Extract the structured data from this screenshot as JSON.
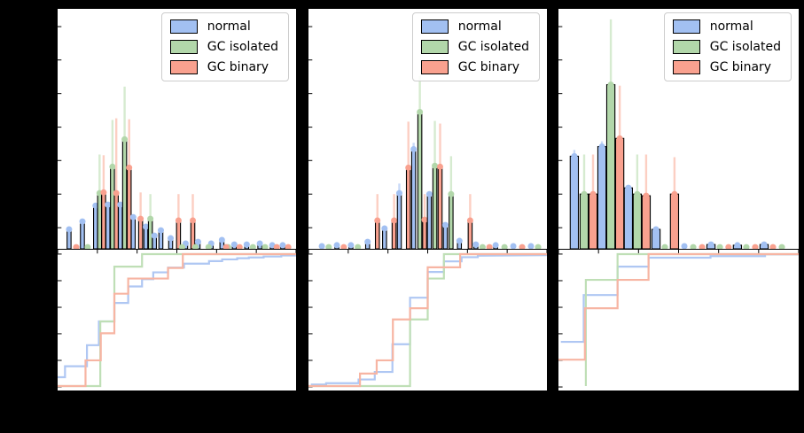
{
  "style": {
    "figure_bg": "#000000",
    "axes_bg": "#ffffff",
    "spine_color": "#000000",
    "legend_border": "#cccccc",
    "series": {
      "normal": {
        "fill": "#a2c0f2",
        "err": "#c9daf8",
        "line": "#afc7f3"
      },
      "isolated": {
        "fill": "#b2d7aa",
        "err": "#d6ebd0",
        "line": "#bfdfb6"
      },
      "binary": {
        "fill": "#f9a18f",
        "err": "#fccfc3",
        "line": "#f7b5a3"
      }
    }
  },
  "legend": {
    "items": [
      {
        "key": "normal",
        "label": "normal"
      },
      {
        "key": "isolated",
        "label": "GC isolated"
      },
      {
        "key": "binary",
        "label": "GC binary"
      }
    ]
  },
  "layout_hints": {
    "panels": 3,
    "rows_per_panel": [
      "histogram with error bars",
      "cumulative step plot"
    ],
    "legend_position": "upper-right of each histogram",
    "note": "axis tick labels / titles are not visible against the black figure background"
  },
  "chart_data": [
    {
      "panel": 1,
      "histogram": {
        "type": "bar",
        "bar_width_frac": 0.0165,
        "columns": [
          "series(n=normal,i=GC isolated,b=GC binary)",
          "x_frac",
          "height_frac",
          "errbar_top_frac"
        ],
        "bars": [
          [
            "n",
            0.048,
            0.081
          ],
          [
            "b",
            0.078,
            0.007
          ],
          [
            "n",
            0.104,
            0.114
          ],
          [
            "i",
            0.126,
            0.007
          ],
          [
            "n",
            0.159,
            0.18
          ],
          [
            "i",
            0.176,
            0.232,
            0.393
          ],
          [
            "b",
            0.193,
            0.235,
            0.39
          ],
          [
            "n",
            0.211,
            0.184
          ],
          [
            "i",
            0.23,
            0.342,
            0.537
          ],
          [
            "b",
            0.246,
            0.232,
            0.544
          ],
          [
            "n",
            0.263,
            0.184
          ],
          [
            "i",
            0.281,
            0.456,
            0.676
          ],
          [
            "b",
            0.3,
            0.338,
            0.54
          ],
          [
            "n",
            0.317,
            0.132
          ],
          [
            "b",
            0.348,
            0.125,
            0.235
          ],
          [
            "n",
            0.37,
            0.092
          ],
          [
            "i",
            0.389,
            0.125,
            0.228
          ],
          [
            "n",
            0.406,
            0.055
          ],
          [
            "n",
            0.433,
            0.077
          ],
          [
            "n",
            0.474,
            0.044
          ],
          [
            "b",
            0.507,
            0.118,
            0.228
          ],
          [
            "n",
            0.537,
            0.022
          ],
          [
            "b",
            0.567,
            0.118,
            0.228
          ],
          [
            "n",
            0.589,
            0.029
          ],
          [
            "n",
            0.644,
            0.022
          ],
          [
            "n",
            0.689,
            0.037
          ],
          [
            "n",
            0.741,
            0.018
          ],
          [
            "n",
            0.793,
            0.018
          ],
          [
            "n",
            0.848,
            0.022
          ],
          [
            "n",
            0.9,
            0.015
          ],
          [
            "n",
            0.944,
            0.015
          ],
          [
            "i",
            0.522,
            0.007
          ],
          [
            "i",
            0.578,
            0.007
          ],
          [
            "i",
            0.633,
            0.007
          ],
          [
            "i",
            0.715,
            0.007
          ],
          [
            "i",
            0.819,
            0.007
          ],
          [
            "i",
            0.87,
            0.007
          ],
          [
            "b",
            0.707,
            0.007
          ],
          [
            "b",
            0.763,
            0.007
          ],
          [
            "b",
            0.919,
            0.007
          ],
          [
            "b",
            0.967,
            0.007
          ]
        ]
      },
      "cdf": {
        "type": "line",
        "columns": [
          "x_frac",
          "cumulative_fraction"
        ],
        "series": {
          "normal": [
            [
              0,
              0.067
            ],
            [
              0.031,
              0.067
            ],
            [
              0.031,
              0.15
            ],
            [
              0.123,
              0.15
            ],
            [
              0.123,
              0.31
            ],
            [
              0.173,
              0.31
            ],
            [
              0.173,
              0.49
            ],
            [
              0.238,
              0.49
            ],
            [
              0.238,
              0.63
            ],
            [
              0.296,
              0.63
            ],
            [
              0.296,
              0.755
            ],
            [
              0.354,
              0.755
            ],
            [
              0.354,
              0.81
            ],
            [
              0.401,
              0.81
            ],
            [
              0.401,
              0.862
            ],
            [
              0.463,
              0.862
            ],
            [
              0.463,
              0.898
            ],
            [
              0.53,
              0.898
            ],
            [
              0.53,
              0.928
            ],
            [
              0.635,
              0.928
            ],
            [
              0.635,
              0.947
            ],
            [
              0.69,
              0.947
            ],
            [
              0.69,
              0.96
            ],
            [
              0.753,
              0.96
            ],
            [
              0.753,
              0.969
            ],
            [
              0.802,
              0.969
            ],
            [
              0.802,
              0.975
            ],
            [
              0.864,
              0.975
            ],
            [
              0.864,
              0.982
            ],
            [
              0.938,
              0.982
            ],
            [
              0.938,
              0.99
            ],
            [
              1,
              0.99
            ]
          ],
          "isolated": [
            [
              0,
              0
            ],
            [
              0.179,
              0
            ],
            [
              0.179,
              0.49
            ],
            [
              0.238,
              0.49
            ],
            [
              0.238,
              0.905
            ],
            [
              0.354,
              0.905
            ],
            [
              0.354,
              1.0
            ],
            [
              1,
              1.0
            ]
          ],
          "binary": [
            [
              0,
              0
            ],
            [
              0.117,
              0
            ],
            [
              0.117,
              0.195
            ],
            [
              0.181,
              0.195
            ],
            [
              0.181,
              0.4
            ],
            [
              0.238,
              0.4
            ],
            [
              0.238,
              0.7
            ],
            [
              0.296,
              0.7
            ],
            [
              0.296,
              0.815
            ],
            [
              0.463,
              0.815
            ],
            [
              0.463,
              0.895
            ],
            [
              0.525,
              0.895
            ],
            [
              0.525,
              1.0
            ],
            [
              1,
              1.0
            ]
          ]
        }
      }
    },
    {
      "panel": 2,
      "histogram": {
        "type": "bar",
        "bar_width_frac": 0.0165,
        "columns": [
          "series(n=normal,i=GC isolated,b=GC binary)",
          "x_frac",
          "height_frac",
          "errbar_top_frac"
        ],
        "bars": [
          [
            "n",
            0.056,
            0.011
          ],
          [
            "i",
            0.085,
            0.007
          ],
          [
            "n",
            0.119,
            0.015
          ],
          [
            "b",
            0.148,
            0.007
          ],
          [
            "n",
            0.178,
            0.015
          ],
          [
            "i",
            0.207,
            0.007
          ],
          [
            "n",
            0.248,
            0.029
          ],
          [
            "b",
            0.289,
            0.118,
            0.228
          ],
          [
            "n",
            0.319,
            0.085
          ],
          [
            "b",
            0.359,
            0.118,
            0.228
          ],
          [
            "n",
            0.381,
            0.232,
            0.272
          ],
          [
            "b",
            0.419,
            0.338,
            0.53
          ],
          [
            "n",
            0.441,
            0.415,
            0.442
          ],
          [
            "i",
            0.467,
            0.57,
            0.72
          ],
          [
            "b",
            0.487,
            0.121,
            0.228
          ],
          [
            "n",
            0.507,
            0.228
          ],
          [
            "i",
            0.53,
            0.346,
            0.533
          ],
          [
            "b",
            0.552,
            0.342,
            0.522
          ],
          [
            "n",
            0.574,
            0.099
          ],
          [
            "i",
            0.598,
            0.228,
            0.386
          ],
          [
            "n",
            0.633,
            0.033
          ],
          [
            "b",
            0.678,
            0.118,
            0.228
          ],
          [
            "n",
            0.702,
            0.018
          ],
          [
            "i",
            0.73,
            0.007
          ],
          [
            "b",
            0.759,
            0.007
          ],
          [
            "n",
            0.785,
            0.015
          ],
          [
            "i",
            0.822,
            0.007
          ],
          [
            "n",
            0.859,
            0.011
          ],
          [
            "b",
            0.896,
            0.007
          ],
          [
            "n",
            0.933,
            0.011
          ],
          [
            "i",
            0.963,
            0.007
          ]
        ]
      },
      "cdf": {
        "type": "line",
        "columns": [
          "x_frac",
          "cumulative_fraction"
        ],
        "series": {
          "normal": [
            [
              0.01,
              0.012
            ],
            [
              0.074,
              0.012
            ],
            [
              0.074,
              0.022
            ],
            [
              0.21,
              0.022
            ],
            [
              0.21,
              0.05
            ],
            [
              0.278,
              0.05
            ],
            [
              0.278,
              0.107
            ],
            [
              0.352,
              0.107
            ],
            [
              0.352,
              0.317
            ],
            [
              0.426,
              0.317
            ],
            [
              0.426,
              0.67
            ],
            [
              0.5,
              0.67
            ],
            [
              0.5,
              0.865
            ],
            [
              0.568,
              0.865
            ],
            [
              0.568,
              0.945
            ],
            [
              0.642,
              0.945
            ],
            [
              0.642,
              0.977
            ],
            [
              0.71,
              0.977
            ],
            [
              0.71,
              0.988
            ],
            [
              1,
              0.992
            ]
          ],
          "isolated": [
            [
              0,
              0
            ],
            [
              0.426,
              0
            ],
            [
              0.426,
              0.505
            ],
            [
              0.5,
              0.505
            ],
            [
              0.5,
              0.815
            ],
            [
              0.568,
              0.815
            ],
            [
              0.568,
              1.0
            ],
            [
              1,
              1.0
            ]
          ],
          "binary": [
            [
              0,
              0
            ],
            [
              0.216,
              0
            ],
            [
              0.216,
              0.095
            ],
            [
              0.286,
              0.095
            ],
            [
              0.286,
              0.195
            ],
            [
              0.354,
              0.195
            ],
            [
              0.354,
              0.505
            ],
            [
              0.426,
              0.505
            ],
            [
              0.426,
              0.59
            ],
            [
              0.5,
              0.59
            ],
            [
              0.5,
              0.9
            ],
            [
              0.636,
              0.9
            ],
            [
              0.636,
              1.0
            ],
            [
              1,
              1.0
            ]
          ]
        }
      }
    },
    {
      "panel": 3,
      "histogram": {
        "type": "bar",
        "bar_width_frac": 0.034,
        "columns": [
          "series(n=normal,i=GC isolated,b=GC binary)",
          "x_frac",
          "height_frac",
          "errbar_top_frac"
        ],
        "bars": [
          [
            "n",
            0.066,
            0.386,
            0.412
          ],
          [
            "i",
            0.107,
            0.228,
            0.393
          ],
          [
            "b",
            0.144,
            0.228,
            0.393
          ],
          [
            "n",
            0.181,
            0.426,
            0.448
          ],
          [
            "i",
            0.218,
            0.684,
            0.956
          ],
          [
            "b",
            0.255,
            0.46,
            0.68
          ],
          [
            "n",
            0.291,
            0.254
          ],
          [
            "i",
            0.328,
            0.228,
            0.393
          ],
          [
            "b",
            0.365,
            0.221,
            0.393
          ],
          [
            "n",
            0.406,
            0.081
          ],
          [
            "i",
            0.443,
            0.007
          ],
          [
            "b",
            0.483,
            0.228,
            0.382
          ],
          [
            "n",
            0.524,
            0.011
          ],
          [
            "i",
            0.561,
            0.007
          ],
          [
            "b",
            0.598,
            0.007
          ],
          [
            "n",
            0.635,
            0.018
          ],
          [
            "i",
            0.672,
            0.007
          ],
          [
            "b",
            0.708,
            0.007
          ],
          [
            "n",
            0.745,
            0.015
          ],
          [
            "i",
            0.782,
            0.007
          ],
          [
            "b",
            0.819,
            0.007
          ],
          [
            "n",
            0.856,
            0.018
          ],
          [
            "b",
            0.893,
            0.007
          ],
          [
            "i",
            0.93,
            0.007
          ]
        ]
      },
      "cdf": {
        "type": "line",
        "columns": [
          "x_frac",
          "cumulative_fraction"
        ],
        "series": {
          "normal": [
            [
              0.01,
              0.335
            ],
            [
              0.105,
              0.335
            ],
            [
              0.105,
              0.69
            ],
            [
              0.246,
              0.69
            ],
            [
              0.246,
              0.905
            ],
            [
              0.375,
              0.905
            ],
            [
              0.375,
              0.973
            ],
            [
              0.633,
              0.973
            ],
            [
              0.633,
              0.985
            ],
            [
              0.86,
              0.985
            ],
            [
              0.86,
              0.998
            ],
            [
              1,
              0.998
            ]
          ],
          "isolated": [
            [
              0.114,
              0
            ],
            [
              0.114,
              0.805
            ],
            [
              0.246,
              0.805
            ],
            [
              0.246,
              1.0
            ],
            [
              1,
              1.0
            ]
          ],
          "binary": [
            [
              0,
              0.2
            ],
            [
              0.11,
              0.2
            ],
            [
              0.11,
              0.59
            ],
            [
              0.246,
              0.59
            ],
            [
              0.246,
              0.805
            ],
            [
              0.375,
              0.805
            ],
            [
              0.375,
              1.0
            ],
            [
              1,
              1.0
            ]
          ]
        }
      }
    }
  ]
}
